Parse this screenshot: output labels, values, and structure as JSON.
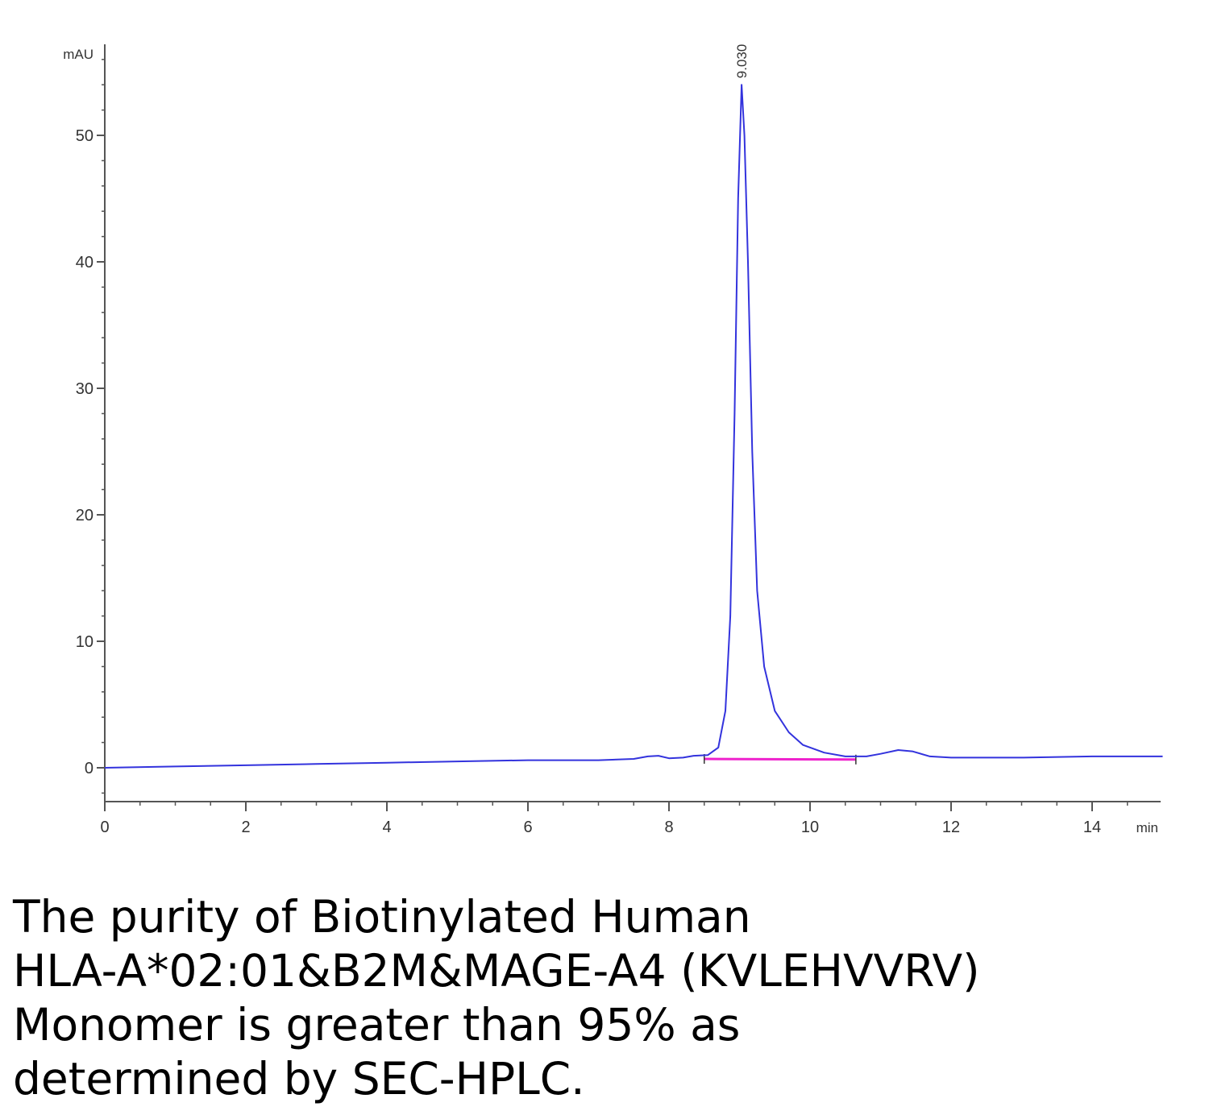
{
  "chart_data": {
    "type": "line",
    "title": "",
    "xlabel": "",
    "ylabel": "",
    "x_unit_label": "min",
    "y_unit_label": "mAU",
    "xlim": [
      0,
      15
    ],
    "ylim": [
      -2.5,
      57
    ],
    "x_ticks": [
      0,
      2,
      4,
      6,
      8,
      10,
      12,
      14
    ],
    "y_ticks": [
      0,
      10,
      20,
      30,
      40,
      50
    ],
    "grid": false,
    "series": [
      {
        "color": "#3333dd",
        "points": [
          [
            0,
            0.0
          ],
          [
            1,
            0.1
          ],
          [
            2,
            0.2
          ],
          [
            3,
            0.3
          ],
          [
            4,
            0.4
          ],
          [
            5,
            0.5
          ],
          [
            6,
            0.6
          ],
          [
            7,
            0.6
          ],
          [
            7.5,
            0.7
          ],
          [
            7.7,
            0.9
          ],
          [
            7.85,
            0.95
          ],
          [
            8.0,
            0.75
          ],
          [
            8.2,
            0.8
          ],
          [
            8.35,
            0.95
          ],
          [
            8.55,
            1.0
          ],
          [
            8.7,
            1.6
          ],
          [
            8.8,
            4.5
          ],
          [
            8.87,
            12
          ],
          [
            8.93,
            28
          ],
          [
            8.98,
            45
          ],
          [
            9.03,
            54
          ],
          [
            9.07,
            50
          ],
          [
            9.12,
            40
          ],
          [
            9.18,
            25
          ],
          [
            9.25,
            14
          ],
          [
            9.35,
            8
          ],
          [
            9.5,
            4.5
          ],
          [
            9.7,
            2.8
          ],
          [
            9.9,
            1.8
          ],
          [
            10.2,
            1.2
          ],
          [
            10.5,
            0.9
          ],
          [
            10.8,
            0.9
          ],
          [
            11.0,
            1.1
          ],
          [
            11.25,
            1.4
          ],
          [
            11.45,
            1.3
          ],
          [
            11.7,
            0.9
          ],
          [
            12.0,
            0.8
          ],
          [
            13,
            0.8
          ],
          [
            14,
            0.9
          ],
          [
            15,
            0.9
          ]
        ]
      }
    ],
    "baseline": {
      "color": "#ee22cc",
      "from": [
        8.5,
        0.7
      ],
      "to": [
        10.65,
        0.65
      ]
    },
    "peak_annotation": {
      "x": 9.03,
      "y": 54,
      "text": "9.030"
    }
  },
  "caption": {
    "line1": "The purity of Biotinylated Human",
    "line2": "HLA-A*02:01&B2M&MAGE-A4 (KVLEHVVRV)",
    "line3": "Monomer is greater than 95% as",
    "line4": "determined by SEC-HPLC."
  }
}
